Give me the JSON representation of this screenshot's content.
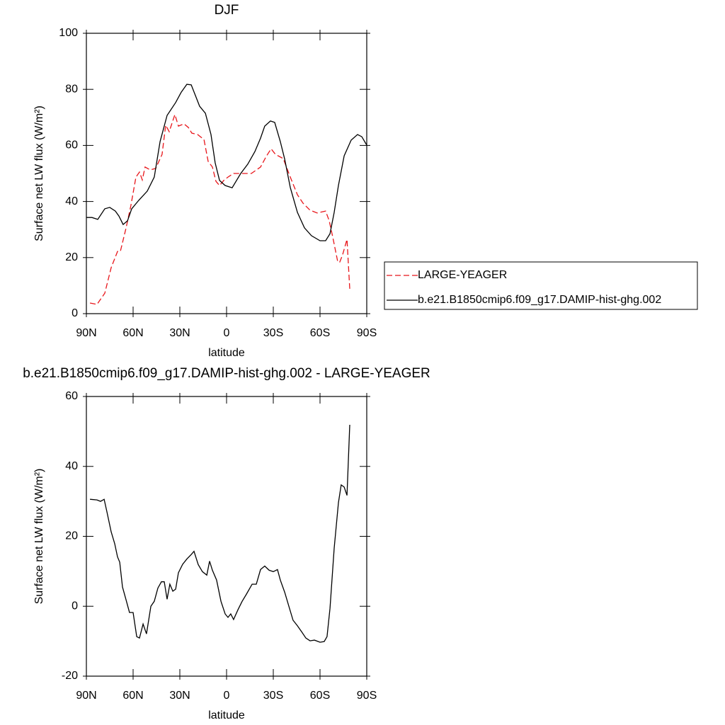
{
  "chart_data": [
    {
      "type": "line",
      "title": "DJF",
      "ylabel": "Surface net LW flux (W/m²)",
      "xlabel": "latitude",
      "xlim": [
        90,
        -90
      ],
      "xticks": [
        {
          "value": 90,
          "label": "90N"
        },
        {
          "value": 60,
          "label": "60N"
        },
        {
          "value": 30,
          "label": "30N"
        },
        0,
        {
          "value": -30,
          "label": "30S"
        },
        {
          "value": -60,
          "label": "60S"
        },
        {
          "value": -90,
          "label": "90S"
        }
      ],
      "ylim": [
        0,
        100
      ],
      "yticks": [
        0,
        20,
        40,
        60,
        80,
        100
      ],
      "legend": "right",
      "series": [
        {
          "name": "LARGE-YEAGER",
          "color": "#e8151a",
          "dash": true,
          "x": [
            87.7,
            83.2,
            78.2,
            74.1,
            70,
            68.2,
            64.5,
            61.4,
            58.2,
            55.9,
            54.1,
            52.3,
            49.1,
            45.5,
            41.4,
            39.1,
            36.8,
            33.2,
            30.9,
            27.3,
            24.5,
            22.3,
            18.6,
            14.5,
            11.8,
            9.1,
            6.8,
            4.5,
            1.8,
            -0.9,
            -4.5,
            -9.1,
            -15.9,
            -21.8,
            -25.5,
            -28.6,
            -31.4,
            -36.4,
            -40.9,
            -45.5,
            -49.1,
            -53.6,
            -58.2,
            -63.6,
            -65.9,
            -68.2,
            -71.4,
            -72.7,
            -74.5,
            -77.3,
            -79.1
          ],
          "values": [
            3.8,
            3.3,
            7.3,
            16.4,
            22.2,
            22.2,
            30.6,
            38.6,
            48.7,
            50.5,
            47.7,
            52.3,
            51.3,
            51.8,
            56.8,
            67.2,
            64.9,
            71,
            66.9,
            67.7,
            66.4,
            64.4,
            63.9,
            62.1,
            54.3,
            52.3,
            47.2,
            45.7,
            47.5,
            48.7,
            50,
            50,
            50,
            52.3,
            56.1,
            58.8,
            56.8,
            55.3,
            48.7,
            42.4,
            39.4,
            36.9,
            35.9,
            36.6,
            33.1,
            27.3,
            18.4,
            18.4,
            21,
            26.5,
            8.8
          ]
        },
        {
          "name": "b.e21.B1850cmip6.f09_g17.DAMIP-hist-ghg.002",
          "color": "#000000",
          "dash": false,
          "x": [
            90,
            86.4,
            82.7,
            78.2,
            75,
            71.4,
            69.1,
            66.4,
            63.6,
            60.9,
            56.4,
            50.9,
            46.4,
            42.7,
            38.2,
            32.7,
            29.1,
            25.5,
            22.7,
            20,
            17.3,
            13.6,
            10,
            7.3,
            4.5,
            0.9,
            -3.6,
            -9.1,
            -13.6,
            -18.2,
            -21.8,
            -24.5,
            -28.2,
            -30.9,
            -34.5,
            -37.3,
            -40.9,
            -45.5,
            -50,
            -54.5,
            -60,
            -63.6,
            -66.4,
            -69.1,
            -71.8,
            -75.5,
            -80,
            -84.1,
            -86.8,
            -90
          ],
          "values": [
            34.3,
            34.3,
            33.6,
            37.4,
            37.9,
            36.6,
            34.8,
            31.8,
            33.1,
            37.4,
            40.4,
            43.7,
            48.7,
            61.4,
            70.7,
            75.3,
            79,
            81.8,
            81.6,
            77.8,
            74,
            71.5,
            63.9,
            53.8,
            47.5,
            45.7,
            44.9,
            50,
            53.3,
            57.8,
            62.6,
            66.9,
            68.7,
            68.2,
            61.4,
            55.1,
            45,
            36.1,
            30.6,
            27.8,
            26,
            26,
            28.5,
            36.1,
            45.7,
            56.3,
            61.9,
            63.9,
            63.1,
            60.1
          ]
        }
      ]
    },
    {
      "type": "line",
      "title": "b.e21.B1850cmip6.f09_g17.DAMIP-hist-ghg.002 - LARGE-YEAGER",
      "ylabel": "Surface net LW flux (W/m²)",
      "xlabel": "latitude",
      "xlim": [
        90,
        -90
      ],
      "xticks": [
        {
          "value": 90,
          "label": "90N"
        },
        {
          "value": 60,
          "label": "60N"
        },
        {
          "value": 30,
          "label": "30N"
        },
        0,
        {
          "value": -30,
          "label": "30S"
        },
        {
          "value": -60,
          "label": "60S"
        },
        {
          "value": -90,
          "label": "90S"
        }
      ],
      "ylim": [
        -20,
        60
      ],
      "yticks": [
        -20,
        0,
        20,
        40,
        60
      ],
      "x": [
        87.7,
        83.2,
        80.9,
        78.6,
        76.8,
        74.1,
        71.8,
        70,
        68.6,
        66.8,
        64.5,
        62.3,
        60,
        57.7,
        55.9,
        53.6,
        51.4,
        48.6,
        46.4,
        44.1,
        41.8,
        40,
        38.2,
        36.4,
        34.5,
        32.7,
        30.9,
        28.2,
        25.5,
        22.7,
        20.9,
        18.2,
        15.5,
        12.7,
        10.9,
        9.1,
        6.4,
        3.6,
        0.9,
        -0.9,
        -2.7,
        -4.5,
        -7.3,
        -10,
        -12.7,
        -16.4,
        -19.1,
        -21.8,
        -24.5,
        -27.3,
        -30,
        -32.7,
        -34.5,
        -37.3,
        -40,
        -42.7,
        -45.5,
        -48.2,
        -50.9,
        -53.6,
        -56.4,
        -60,
        -62.7,
        -64.5,
        -66.4,
        -69.1,
        -71.8,
        -73.6,
        -75.5,
        -77.3,
        -79.1
      ],
      "values": [
        30.6,
        30.4,
        30,
        30.6,
        27,
        21.3,
        17.9,
        14.1,
        12.6,
        5.5,
        1.8,
        -1.8,
        -1.8,
        -8.7,
        -9.1,
        -5.1,
        -7.9,
        0,
        1.4,
        5.2,
        7,
        7,
        2,
        6.3,
        4.3,
        4.9,
        9.6,
        12,
        13.5,
        14.8,
        15.7,
        11.9,
        9.9,
        8.9,
        12.9,
        10.3,
        7.5,
        1.4,
        -2.2,
        -3.2,
        -2.2,
        -3.8,
        -1,
        1.4,
        3.4,
        6.3,
        6.3,
        10.5,
        11.5,
        10.3,
        9.9,
        10.5,
        7.5,
        4,
        0,
        -4,
        -5.6,
        -7.3,
        -9.1,
        -9.9,
        -9.7,
        -10.3,
        -10.1,
        -8.7,
        -0.6,
        16.6,
        29.6,
        34.7,
        34.1,
        31.7,
        51.9
      ],
      "color": "#000000"
    }
  ]
}
